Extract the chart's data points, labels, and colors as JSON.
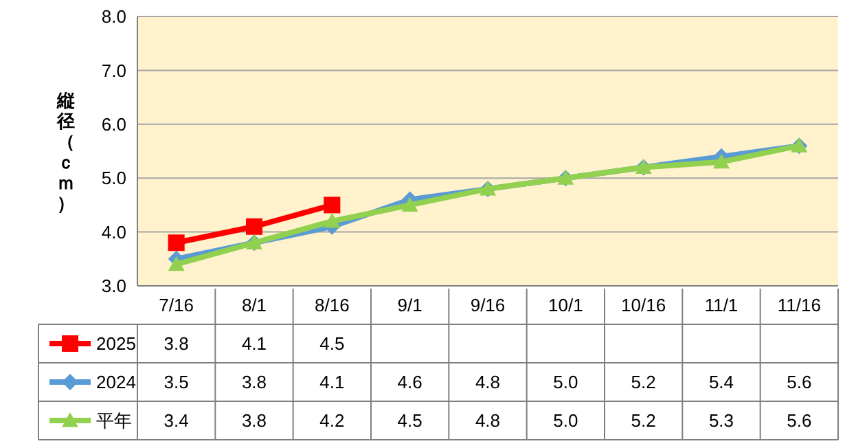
{
  "chart_data": {
    "type": "line",
    "ylabel": "縦径（ｃｍ）",
    "categories": [
      "7/16",
      "8/1",
      "8/16",
      "9/1",
      "9/16",
      "10/1",
      "10/16",
      "11/1",
      "11/16"
    ],
    "ylim": [
      3,
      8
    ],
    "yticks": [
      {
        "value": 3,
        "label": "3.0"
      },
      {
        "value": 4,
        "label": "4.0"
      },
      {
        "value": 5,
        "label": "5.0"
      },
      {
        "value": 6,
        "label": "6.0"
      },
      {
        "value": 7,
        "label": "7.0"
      },
      {
        "value": 8,
        "label": "8.0"
      }
    ],
    "grid": "y",
    "legend": "bottom",
    "line_style": "solid",
    "series": [
      {
        "name": "2025",
        "color": "#ff0000",
        "marker": "square",
        "values": [
          3.8,
          4.1,
          4.5,
          null,
          null,
          null,
          null,
          null,
          null
        ],
        "value_labels": [
          "3.8",
          "4.1",
          "4.5",
          null,
          null,
          null,
          null,
          null,
          null
        ]
      },
      {
        "name": "2024",
        "color": "#5b9bd5",
        "marker": "diamond",
        "values": [
          3.5,
          3.8,
          4.1,
          4.6,
          4.8,
          5.0,
          5.2,
          5.4,
          5.6
        ],
        "value_labels": [
          "3.5",
          "3.8",
          "4.1",
          "4.6",
          "4.8",
          "5.0",
          "5.2",
          "5.4",
          "5.6"
        ]
      },
      {
        "name": "平年",
        "color": "#92d050",
        "marker": "triangle",
        "values": [
          3.4,
          3.8,
          4.2,
          4.5,
          4.8,
          5.0,
          5.2,
          5.3,
          5.6
        ],
        "value_labels": [
          "3.4",
          "3.8",
          "4.2",
          "4.5",
          "4.8",
          "5.0",
          "5.2",
          "5.3",
          "5.6"
        ]
      }
    ]
  }
}
